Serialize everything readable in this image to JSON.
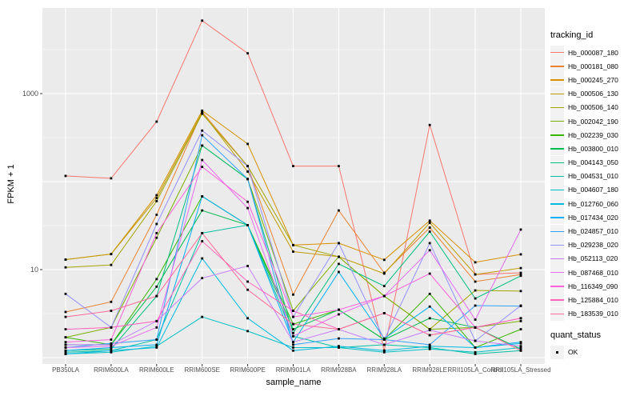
{
  "chart_data": {
    "type": "line",
    "title": "",
    "xlabel": "sample_name",
    "ylabel": "FPKM + 1",
    "y_scale": "log10",
    "grid": true,
    "panel_bg": "#EBEBEB",
    "gridline_color": "#FFFFFF",
    "point_color": "#000000",
    "axis_tick_color": "#333333",
    "tick_label_color": "#4D4D4D",
    "y_axis": {
      "tick_labels": [
        "1000",
        "10"
      ],
      "tick_values": [
        1000,
        10
      ],
      "major_gridlines": [
        1,
        10,
        100,
        1000
      ],
      "minor_gridlines": [
        3.162,
        31.62,
        316.2,
        3162
      ],
      "ylim": [
        0.85,
        9400
      ]
    },
    "categories": [
      "PB350LA",
      "RRIM600LA",
      "RRIM600LE",
      "RRIM600SE",
      "RRIM600PE",
      "RRIM901LA",
      "RRIM928BA",
      "RRIM928LA",
      "RRIM928LE",
      "RRII105LA_Control",
      "RRII105LA_Stressed"
    ],
    "series": [
      {
        "name": "Hb_000087_180",
        "color": "#F8766D",
        "values": [
          116,
          109,
          480,
          6750,
          2870,
          150,
          150,
          1.2,
          440,
          8.8,
          9.2
        ]
      },
      {
        "name": "Hb_000181_080",
        "color": "#EA8331",
        "values": [
          3.3,
          4.3,
          42,
          620,
          150,
          5.2,
          47,
          9.2,
          30,
          7.3,
          8.8
        ]
      },
      {
        "name": "Hb_000245_270",
        "color": "#D89000",
        "values": [
          13,
          15,
          70,
          640,
          268,
          19,
          20,
          12.9,
          36,
          12.1,
          14.9
        ]
      },
      {
        "name": "Hb_000506_130",
        "color": "#C09B00",
        "values": [
          13,
          15,
          65,
          610,
          130,
          16,
          14,
          9.0,
          34,
          8.8,
          10.4
        ]
      },
      {
        "name": "Hb_000506_140",
        "color": "#A3A500",
        "values": [
          10.6,
          11.3,
          60,
          590,
          150,
          19,
          14,
          5.0,
          2.1,
          5.8,
          5.7
        ]
      },
      {
        "name": "Hb_002042_190",
        "color": "#7CAE00",
        "values": [
          1.7,
          2.2,
          23,
          257,
          107,
          3.4,
          14,
          5.0,
          2.1,
          2.2,
          2.6
        ]
      },
      {
        "name": "Hb_002239_030",
        "color": "#39B600",
        "values": [
          1.7,
          1.4,
          7.8,
          68,
          32,
          2.4,
          3.5,
          1.6,
          5.3,
          1.3,
          2.1
        ]
      },
      {
        "name": "Hb_003800_010",
        "color": "#00BB4E",
        "values": [
          1.4,
          1.4,
          6.4,
          47,
          32,
          2.1,
          3.5,
          1.6,
          2.8,
          2.2,
          1.25
        ]
      },
      {
        "name": "Hb_004143_050",
        "color": "#00BF7D",
        "values": [
          1.2,
          1.25,
          5.0,
          257,
          107,
          1.9,
          11.6,
          6.5,
          27,
          4.7,
          8.5
        ]
      },
      {
        "name": "Hb_004531_010",
        "color": "#00C1A3",
        "values": [
          1.15,
          1.2,
          1.6,
          26,
          32,
          1.75,
          1.3,
          1.4,
          1.3,
          1.1,
          1.2
        ]
      },
      {
        "name": "Hb_004607_180",
        "color": "#00BFC4",
        "values": [
          1.1,
          1.15,
          1.35,
          2.9,
          2.0,
          1.3,
          1.3,
          1.15,
          1.25,
          1.15,
          1.3
        ]
      },
      {
        "name": "Hb_012760_060",
        "color": "#00BAE0",
        "values": [
          1.1,
          1.2,
          1.3,
          13.4,
          2.8,
          1.2,
          1.35,
          1.2,
          1.35,
          1.3,
          1.45
        ]
      },
      {
        "name": "Hb_017434_020",
        "color": "#00B0F6",
        "values": [
          1.2,
          1.3,
          1.4,
          68,
          32,
          1.5,
          9.4,
          1.65,
          3.8,
          1.3,
          1.5
        ]
      },
      {
        "name": "Hb_024857_010",
        "color": "#35A2FF",
        "values": [
          1.3,
          1.45,
          1.6,
          336,
          107,
          1.4,
          1.65,
          1.6,
          1.4,
          3.9,
          3.85
        ]
      },
      {
        "name": "Hb_029238_020",
        "color": "#9590FF",
        "values": [
          5.3,
          2.2,
          33,
          380,
          150,
          2.9,
          20,
          1.6,
          20,
          1.55,
          3.9
        ]
      },
      {
        "name": "Hb_052113_020",
        "color": "#C77CFF",
        "values": [
          1.4,
          1.4,
          2.6,
          8,
          11,
          1.5,
          2.1,
          1.4,
          2.05,
          1.55,
          1.35
        ]
      },
      {
        "name": "Hb_087468_010",
        "color": "#E76BF3",
        "values": [
          1.3,
          1.35,
          2.2,
          176,
          50,
          1.75,
          3.1,
          5.0,
          16.6,
          2.7,
          28.5
        ]
      },
      {
        "name": "Hb_116349_090",
        "color": "#FA62DB",
        "values": [
          1.5,
          1.6,
          26,
          147,
          59,
          2.9,
          3.5,
          5.0,
          9.0,
          2.2,
          2.8
        ]
      },
      {
        "name": "Hb_125884_010",
        "color": "#FF62BC",
        "values": [
          2.1,
          2.2,
          2.6,
          21,
          7.3,
          3.4,
          2.1,
          3.2,
          1.8,
          2.2,
          2.8
        ]
      },
      {
        "name": "Hb_183539_010",
        "color": "#FF6A98",
        "values": [
          2.9,
          3.4,
          5.0,
          26,
          5.9,
          2.4,
          2.1,
          3.2,
          1.8,
          2.2,
          1.2
        ]
      }
    ],
    "legend": {
      "tracking_title": "tracking_id",
      "quant_title": "quant_status",
      "quant_entries": [
        {
          "label": "OK"
        }
      ],
      "position": "right",
      "key_bg": "#F2F2F2"
    }
  }
}
